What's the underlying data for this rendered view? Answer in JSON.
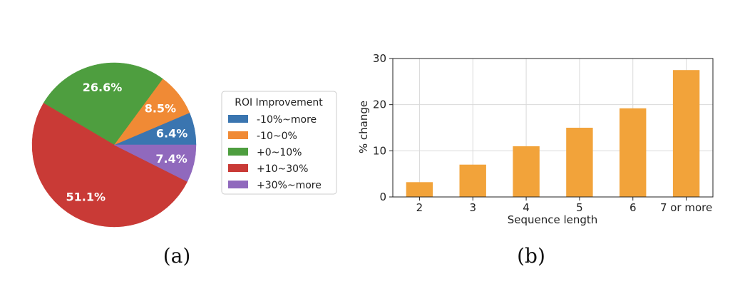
{
  "chart_data": [
    {
      "type": "pie",
      "caption": "(a)",
      "legend_title": "ROI Improvement",
      "legend_position": "right",
      "start_angle_deg": 0,
      "direction": "counterclockwise",
      "slices": [
        {
          "label": "-10%~more",
          "value": 6.4,
          "text": "6.4%",
          "color": "#3a75b0"
        },
        {
          "label": "-10~0%",
          "value": 8.5,
          "text": "8.5%",
          "color": "#f08a35"
        },
        {
          "label": "+0~10%",
          "value": 26.6,
          "text": "26.6%",
          "color": "#4e9e3f"
        },
        {
          "label": "+10~30%",
          "value": 51.1,
          "text": "51.1%",
          "color": "#c93a36"
        },
        {
          "label": "+30%~more",
          "value": 7.4,
          "text": "7.4%",
          "color": "#9069bd"
        }
      ]
    },
    {
      "type": "bar",
      "caption": "(b)",
      "categories": [
        "2",
        "3",
        "4",
        "5",
        "6",
        "7 or more"
      ],
      "values": [
        3.2,
        7.0,
        11.0,
        15.0,
        19.2,
        27.5
      ],
      "xlabel": "Sequence length",
      "ylabel": "% change",
      "ylim": [
        0,
        30
      ],
      "yticks": [
        0,
        10,
        20,
        30
      ],
      "grid": true,
      "bar_color": "#f2a33a"
    }
  ]
}
